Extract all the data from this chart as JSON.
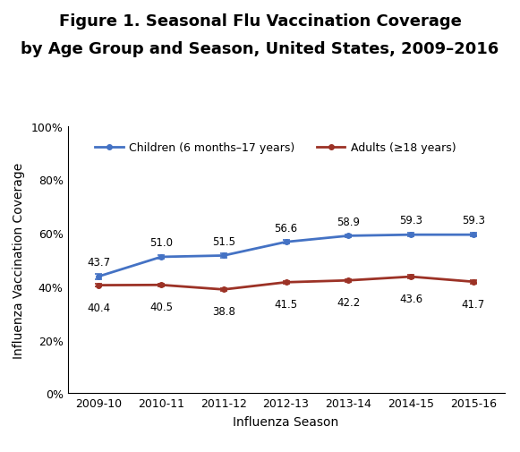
{
  "title_line1": "Figure 1. Seasonal Flu Vaccination Coverage",
  "title_line2": "by Age Group and Season, United States, 2009–2016",
  "xlabel": "Influenza Season",
  "ylabel": "Influenza Vaccination Coverage",
  "seasons": [
    "2009-10",
    "2010-11",
    "2011-12",
    "2012-13",
    "2013-14",
    "2014-15",
    "2015-16"
  ],
  "children_values": [
    43.7,
    51.0,
    51.5,
    56.6,
    58.9,
    59.3,
    59.3
  ],
  "adults_values": [
    40.4,
    40.5,
    38.8,
    41.5,
    42.2,
    43.6,
    41.7
  ],
  "children_errors": [
    1.0,
    0.7,
    0.8,
    0.7,
    0.6,
    0.6,
    0.6
  ],
  "adults_errors": [
    0.6,
    0.6,
    0.6,
    0.5,
    0.5,
    0.6,
    0.6
  ],
  "children_color": "#4472C4",
  "adults_color": "#9C3226",
  "children_label": "Children (6 months–17 years)",
  "adults_label": "Adults (≥18 years)",
  "ylim": [
    0,
    100
  ],
  "yticks": [
    0,
    20,
    40,
    60,
    80,
    100
  ],
  "ytick_labels": [
    "0%",
    "20%",
    "40%",
    "60%",
    "80%",
    "100%"
  ],
  "background_color": "#ffffff",
  "title_fontsize": 13,
  "label_fontsize": 10,
  "tick_fontsize": 9,
  "annotation_fontsize": 8.5,
  "legend_fontsize": 9
}
